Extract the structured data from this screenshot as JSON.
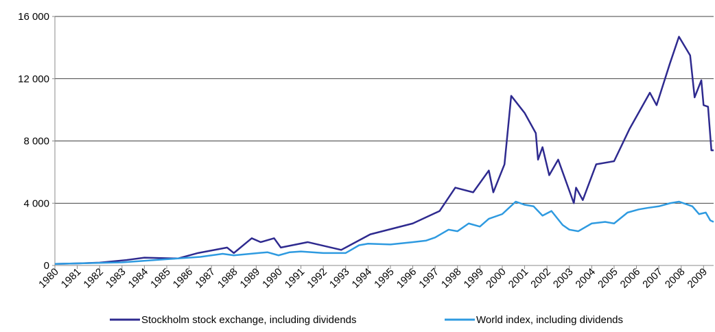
{
  "chart_data": {
    "type": "line",
    "xlim": [
      1980,
      2009.45
    ],
    "xticks": [
      1980,
      1981,
      1982,
      1983,
      1984,
      1985,
      1986,
      1987,
      1988,
      1989,
      1990,
      1991,
      1992,
      1993,
      1994,
      1995,
      1996,
      1997,
      1998,
      1999,
      2000,
      2001,
      2002,
      2003,
      2004,
      2005,
      2006,
      2007,
      2008,
      2009
    ],
    "ylim": [
      0,
      16000
    ],
    "yticks": [
      0,
      {
        "value": 4000,
        "label": "4 000"
      },
      {
        "value": 8000,
        "label": "8 000"
      },
      {
        "value": 12000,
        "label": "12 000"
      },
      {
        "value": 16000,
        "label": "16 000"
      }
    ],
    "grid": true,
    "legend": "bottom",
    "series": [
      {
        "name": "Stockholm stock exchange, including dividends",
        "color": "#2e2a8f",
        "x": [
          1980,
          1981,
          1982,
          1983.2,
          1984,
          1985.5,
          1986.4,
          1987.7,
          1988,
          1988.8,
          1989.2,
          1989.8,
          1990.1,
          1991.3,
          1992.8,
          1994.1,
          1996.0,
          1997.2,
          1997.9,
          1998.7,
          1999.4,
          1999.6,
          2000.1,
          2000.4,
          2001.0,
          2001.5,
          2001.6,
          2001.8,
          2002.1,
          2002.5,
          2003.2,
          2003.3,
          2003.6,
          2004.2,
          2005.0,
          2005.7,
          2006.6,
          2006.9,
          2007.5,
          2007.9,
          2008.4,
          2008.6,
          2008.9,
          2009.0,
          2009.2,
          2009.35,
          2009.45
        ],
        "values": [
          100,
          130,
          180,
          350,
          500,
          450,
          800,
          1150,
          800,
          1750,
          1500,
          1750,
          1150,
          1500,
          1000,
          2000,
          2700,
          3500,
          5000,
          4700,
          6100,
          4700,
          6500,
          10900,
          9800,
          8500,
          6800,
          7600,
          5800,
          6800,
          4000,
          5000,
          4200,
          6500,
          6700,
          8800,
          11100,
          10300,
          13000,
          14700,
          13500,
          10800,
          11900,
          10300,
          10200,
          7400,
          7400
        ]
      },
      {
        "name": "World index, including dividends",
        "color": "#2e9ae0",
        "x": [
          1980,
          1983,
          1985,
          1986.5,
          1987.5,
          1988,
          1989.5,
          1990,
          1990.5,
          1991,
          1992,
          1993,
          1993.6,
          1994,
          1995,
          1996,
          1996.6,
          1997,
          1997.6,
          1998,
          1998.5,
          1999,
          1999.4,
          2000,
          2000.3,
          2000.6,
          2001,
          2001.4,
          2001.8,
          2002.2,
          2002.7,
          2003,
          2003.4,
          2004,
          2004.6,
          2005,
          2005.6,
          2006.1,
          2006.5,
          2007,
          2007.5,
          2007.9,
          2008.5,
          2008.8,
          2009.1,
          2009.3,
          2009.45
        ],
        "values": [
          100,
          200,
          400,
          550,
          750,
          650,
          850,
          650,
          850,
          900,
          800,
          800,
          1300,
          1400,
          1350,
          1500,
          1600,
          1800,
          2300,
          2200,
          2700,
          2500,
          3000,
          3300,
          3700,
          4100,
          3900,
          3800,
          3200,
          3500,
          2600,
          2300,
          2200,
          2700,
          2800,
          2700,
          3400,
          3600,
          3700,
          3800,
          4000,
          4100,
          3800,
          3300,
          3400,
          2900,
          2800
        ]
      }
    ]
  }
}
